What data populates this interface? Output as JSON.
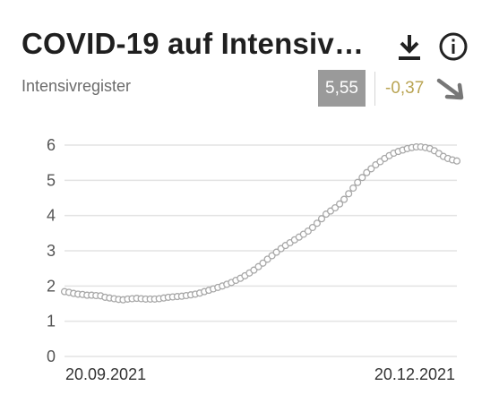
{
  "header": {
    "title": "COVID-19 auf Intensiv…",
    "subtitle": "Intensivregister",
    "download_icon": "download-icon",
    "info_icon": "info-icon"
  },
  "kpi": {
    "value": "5,55",
    "change": "-0,37",
    "trend_icon": "arrow-down-right-icon",
    "change_color": "#b9a453"
  },
  "chart_data": {
    "type": "line",
    "title": "",
    "xlabel": "",
    "ylabel": "",
    "ylim": [
      0,
      6
    ],
    "yticks": [
      "0",
      "1",
      "2",
      "3",
      "4",
      "5",
      "6"
    ],
    "xtick_labels": [
      "20.09.2021",
      "20.12.2021"
    ],
    "grid": true,
    "line_color": "#bdbdbd",
    "series": [
      {
        "values": [
          1.84,
          1.82,
          1.79,
          1.77,
          1.76,
          1.74,
          1.74,
          1.73,
          1.72,
          1.68,
          1.66,
          1.64,
          1.62,
          1.61,
          1.63,
          1.64,
          1.65,
          1.64,
          1.63,
          1.63,
          1.63,
          1.64,
          1.66,
          1.68,
          1.69,
          1.7,
          1.71,
          1.73,
          1.75,
          1.77,
          1.8,
          1.84,
          1.88,
          1.92,
          1.96,
          2.0,
          2.05,
          2.1,
          2.16,
          2.22,
          2.29,
          2.37,
          2.45,
          2.55,
          2.65,
          2.76,
          2.86,
          2.96,
          3.06,
          3.15,
          3.23,
          3.31,
          3.39,
          3.47,
          3.56,
          3.66,
          3.78,
          3.91,
          4.04,
          4.13,
          4.22,
          4.33,
          4.46,
          4.62,
          4.78,
          4.94,
          5.08,
          5.22,
          5.33,
          5.44,
          5.53,
          5.62,
          5.7,
          5.77,
          5.82,
          5.86,
          5.9,
          5.93,
          5.95,
          5.95,
          5.93,
          5.9,
          5.84,
          5.76,
          5.68,
          5.62,
          5.58,
          5.55
        ]
      }
    ]
  }
}
